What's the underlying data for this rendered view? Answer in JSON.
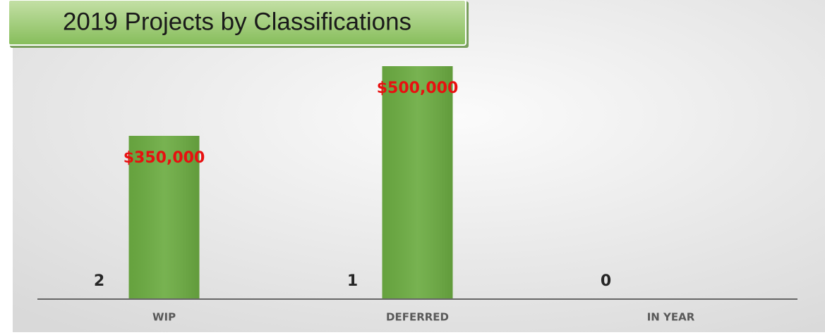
{
  "chart_data": {
    "type": "bar",
    "title": "2019 Projects by Classifications",
    "categories": [
      "WIP",
      "DEFERRED",
      "IN YEAR"
    ],
    "values": [
      350000,
      500000,
      0
    ],
    "value_labels": [
      "$350,000",
      "$500,000",
      null
    ],
    "counts": [
      2,
      1,
      0
    ],
    "color": "#6cac42"
  }
}
